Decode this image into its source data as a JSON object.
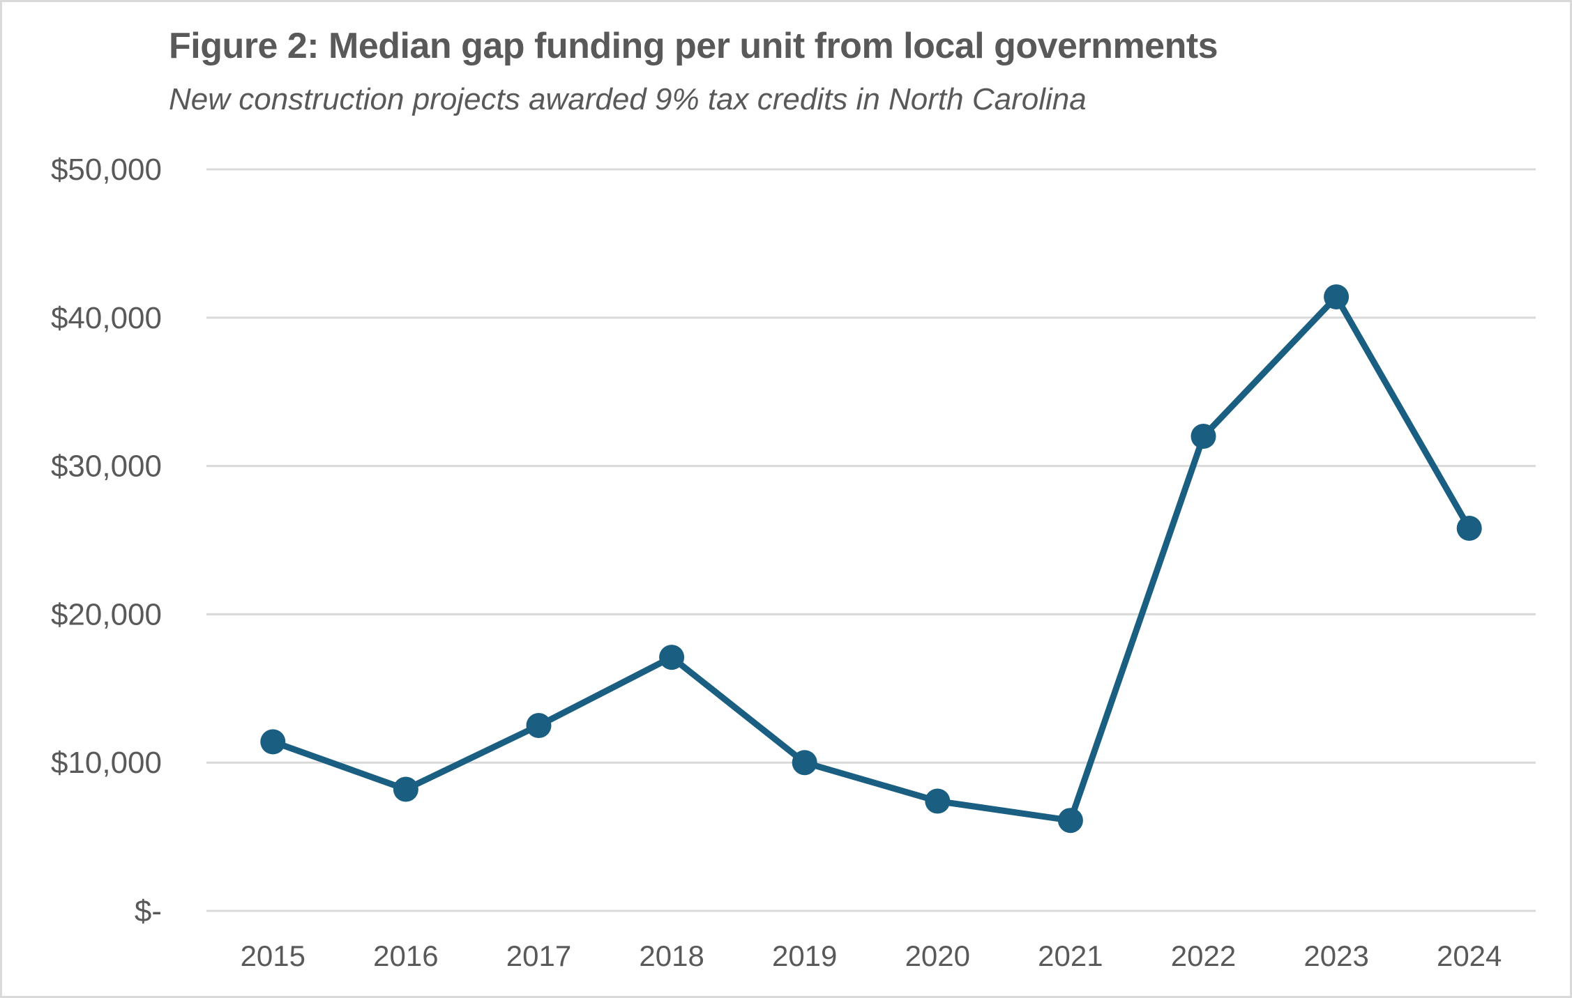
{
  "chart_data": {
    "type": "line",
    "title": "Figure 2: Median gap funding per unit from local governments",
    "subtitle": "New construction projects awarded 9% tax credits in North Carolina",
    "xlabel": "",
    "ylabel": "",
    "categories": [
      "2015",
      "2016",
      "2017",
      "2018",
      "2019",
      "2020",
      "2021",
      "2022",
      "2023",
      "2024"
    ],
    "series": [
      {
        "name": "Median gap funding per unit",
        "values": [
          11400,
          8200,
          12500,
          17100,
          10000,
          7400,
          6100,
          32000,
          41400,
          25800
        ],
        "color": "#1a5f82"
      }
    ],
    "ylim": [
      0,
      50000
    ],
    "yticks": [
      0,
      10000,
      20000,
      30000,
      40000,
      50000
    ],
    "ytick_labels": [
      "$-",
      "$10,000",
      "$20,000",
      "$30,000",
      "$40,000",
      "$50,000"
    ],
    "grid": true,
    "gridline_color": "#d9d9d9",
    "markers": true,
    "legend": "none"
  }
}
